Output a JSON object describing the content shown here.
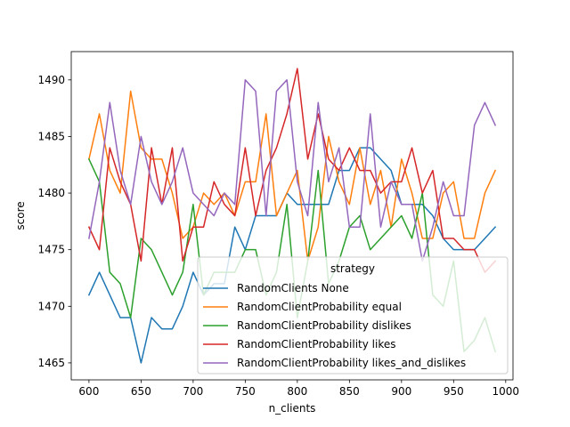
{
  "chart_data": {
    "type": "line",
    "title": "",
    "xlabel": "n_clients",
    "ylabel": "score",
    "xlim": [
      583,
      1007
    ],
    "ylim": [
      1463.5,
      1492.5
    ],
    "xticks": [
      600,
      650,
      700,
      750,
      800,
      850,
      900,
      950,
      1000
    ],
    "yticks": [
      1465,
      1470,
      1475,
      1480,
      1485,
      1490
    ],
    "grid": false,
    "legend": {
      "title": "strategy",
      "placement": "lower-right"
    },
    "x": [
      600,
      610,
      620,
      630,
      640,
      650,
      660,
      670,
      680,
      690,
      700,
      710,
      720,
      730,
      740,
      750,
      760,
      770,
      780,
      790,
      800,
      810,
      820,
      830,
      840,
      850,
      860,
      870,
      880,
      890,
      900,
      910,
      920,
      930,
      940,
      950,
      960,
      970,
      980,
      990
    ],
    "series": [
      {
        "name": "RandomClients None",
        "color": "#1f77b4",
        "values": [
          1471,
          1473,
          1471,
          1469,
          1469,
          1465,
          1469,
          1468,
          1468,
          1470,
          1473,
          1471,
          1472,
          1472,
          1477,
          1475,
          1478,
          1478,
          1478,
          1480,
          1479,
          1479,
          1479,
          1479,
          1482,
          1482,
          1484,
          1484,
          1483,
          1482,
          1479,
          1479,
          1479,
          1478,
          1476,
          1475,
          1475,
          1475,
          1476,
          1477
        ]
      },
      {
        "name": "RandomClientProbability equal",
        "color": "#ff7f0e",
        "values": [
          1483,
          1487,
          1482,
          1480,
          1489,
          1484,
          1483,
          1483,
          1480,
          1476,
          1477,
          1480,
          1479,
          1480,
          1478,
          1481,
          1481,
          1487,
          1478,
          1480,
          1482,
          1474,
          1477,
          1485,
          1481,
          1479,
          1484,
          1479,
          1482,
          1477,
          1483,
          1480,
          1476,
          1476,
          1480,
          1481,
          1476,
          1476,
          1480,
          1482
        ]
      },
      {
        "name": "RandomClientProbability dislikes",
        "color": "#2ca02c",
        "values": [
          1483,
          1481,
          1473,
          1472,
          1469,
          1476,
          1475,
          1473,
          1471,
          1473,
          1479,
          1471,
          1473,
          1473,
          1473,
          1475,
          1475,
          1471,
          1473,
          1479,
          1469,
          1474,
          1482,
          1472,
          1474,
          1477,
          1478,
          1475,
          1476,
          1477,
          1478,
          1476,
          1480,
          1471,
          1470,
          1474,
          1466,
          1467,
          1469,
          1466
        ]
      },
      {
        "name": "RandomClientProbability likes",
        "color": "#d62728",
        "values": [
          1477,
          1475,
          1484,
          1481,
          1479,
          1474,
          1484,
          1479,
          1484,
          1474,
          1477,
          1477,
          1481,
          1479,
          1478,
          1484,
          1478,
          1482,
          1484,
          1487,
          1491,
          1483,
          1487,
          1483,
          1482,
          1484,
          1482,
          1482,
          1480,
          1481,
          1481,
          1484,
          1480,
          1482,
          1476,
          1476,
          1475,
          1475,
          1473,
          1474
        ]
      },
      {
        "name": "RandomClientProbability likes_and_dislikes",
        "color": "#9467bd",
        "values": [
          1476,
          1481,
          1488,
          1482,
          1479,
          1485,
          1481,
          1479,
          1481,
          1484,
          1480,
          1479,
          1478,
          1480,
          1479,
          1490,
          1489,
          1478,
          1489,
          1490,
          1481,
          1478,
          1488,
          1481,
          1484,
          1477,
          1477,
          1487,
          1477,
          1481,
          1479,
          1479,
          1474,
          1477,
          1481,
          1478,
          1478,
          1486,
          1488,
          1486
        ]
      }
    ]
  }
}
